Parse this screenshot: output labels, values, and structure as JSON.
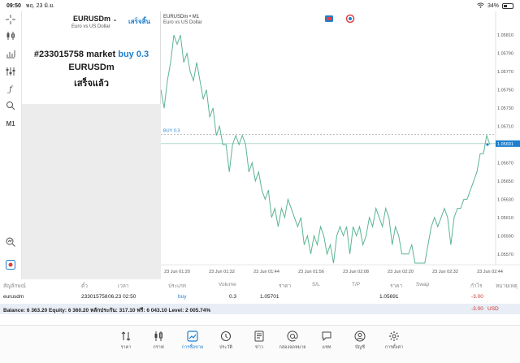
{
  "status": {
    "time": "09:50",
    "date": "พฤ. 23 มิ.ย.",
    "battery": "34%"
  },
  "panel": {
    "symbol": "EURUSDm",
    "description": "Euro vs US Dollar",
    "done_button": "เสร็จสิ้น",
    "order_prefix": "#233015758 market",
    "order_action": "buy 0.3",
    "order_symbol": "EURUSDm",
    "order_status": "เสร็จแล้ว"
  },
  "chart_header": {
    "symbol": "EURUSDm • M1",
    "description": "Euro vs US Dollar"
  },
  "chart_data": {
    "type": "line",
    "x_ticks": [
      "23 Jun 01:20",
      "23 Jun 01:32",
      "23 Jun 01:44",
      "23 Jun 01:56",
      "23 Jun 02:08",
      "23 Jun 02:20",
      "23 Jun 02:32",
      "23 Jun 02:44"
    ],
    "y_ticks": [
      "1.05810",
      "1.05790",
      "1.05770",
      "1.05750",
      "1.05730",
      "1.05710",
      "1.05690",
      "1.05670",
      "1.05650",
      "1.05630",
      "1.05610",
      "1.05590",
      "1.05570"
    ],
    "ylim": [
      1.0556,
      1.0582
    ],
    "values": [
      1.0575,
      1.0573,
      1.0576,
      1.0578,
      1.0581,
      1.058,
      1.0581,
      1.0578,
      1.0579,
      1.0577,
      1.0576,
      1.0578,
      1.0576,
      1.0574,
      1.0575,
      1.0572,
      1.0573,
      1.057,
      1.0571,
      1.0569,
      1.0569,
      1.0566,
      1.0569,
      1.057,
      1.0569,
      1.057,
      1.0569,
      1.0566,
      1.0567,
      1.0565,
      1.0566,
      1.0564,
      1.0563,
      1.0564,
      1.0561,
      1.0562,
      1.056,
      1.0562,
      1.0561,
      1.0563,
      1.0562,
      1.0561,
      1.056,
      1.0561,
      1.0558,
      1.0559,
      1.0557,
      1.0559,
      1.0558,
      1.056,
      1.0559,
      1.0557,
      1.0558,
      1.0556,
      1.0559,
      1.056,
      1.0559,
      1.056,
      1.0557,
      1.056,
      1.0559,
      1.056,
      1.0558,
      1.0559,
      1.0561,
      1.056,
      1.0562,
      1.0561,
      1.056,
      1.0562,
      1.0561,
      1.0558,
      1.056,
      1.0559,
      1.0557,
      1.0557,
      1.0557,
      1.0558,
      1.0556,
      1.0556,
      1.0556,
      1.0556,
      1.0558,
      1.056,
      1.0561,
      1.056,
      1.0561,
      1.0562,
      1.0561,
      1.0558,
      1.0561,
      1.0562,
      1.0562,
      1.0563,
      1.0563,
      1.0564,
      1.0565,
      1.0566,
      1.0568,
      1.0568,
      1.057,
      1.0569
    ],
    "buy_line_label": "BUY 0.3",
    "buy_line_value": 1.05701,
    "current_price": "1.05691",
    "current_value": 1.05691
  },
  "table": {
    "headers": [
      "สัญลักษณ์",
      "ตั๋ว",
      "เวลา",
      "ประเภท",
      "Volume",
      "ราคา",
      "S/L",
      "T/P",
      "ราคา",
      "Swap",
      "กำไร",
      "หมายเหตุ"
    ],
    "row": {
      "symbol": "eurusdm",
      "ticket": "233015758",
      "time": "06.23 02:50",
      "type": "buy",
      "volume": "0.3",
      "open_price": "1.05701",
      "price": "1.05691",
      "profit": "-3.00"
    }
  },
  "balance": {
    "text": "Balance: 6 363.20 Equity: 6 360.20 หลักประกัน: 317.10 ฟรี: 6 043.10 Level: 2 005.74%",
    "profit": "-3.00",
    "currency": "USD"
  },
  "tabs": [
    {
      "label": "ราคา",
      "icon": "quotes-icon"
    },
    {
      "label": "กราฟ",
      "icon": "candles-icon"
    },
    {
      "label": "การซื้อขาย",
      "icon": "trade-icon",
      "active": true
    },
    {
      "label": "ประวัติ",
      "icon": "history-icon"
    },
    {
      "label": "ข่าว",
      "icon": "news-icon"
    },
    {
      "label": "กล่องจดหมาย",
      "icon": "mailbox-icon"
    },
    {
      "label": "แชท",
      "icon": "chat-icon"
    },
    {
      "label": "บัญชี",
      "icon": "account-icon"
    },
    {
      "label": "การตั้งค่า",
      "icon": "settings-icon"
    }
  ],
  "colors": {
    "line": "#5cb592",
    "accent": "#1e7fd0",
    "loss": "#d0312d"
  }
}
